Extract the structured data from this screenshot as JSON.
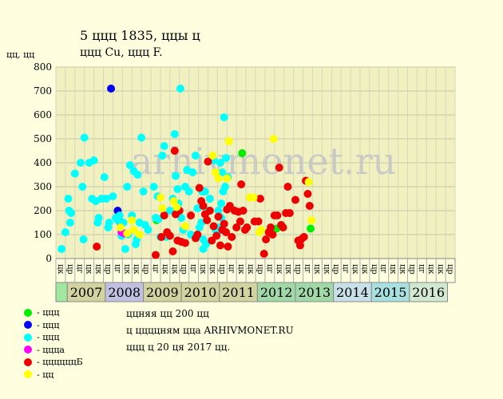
{
  "title": "5 ццц 1835, ццы ц",
  "subtitle": "ццц Cu, ццц F.",
  "ylabel": "цц, цц",
  "watermark": "arhivmonet.ru",
  "notes": [
    "ццняя цц 200 цц",
    "ц ццццням цца ARHIVMONET.RU",
    "ццц ц 20 ця 2017 цц."
  ],
  "legend": [
    {
      "label": "- ццц",
      "color": "#00ee00"
    },
    {
      "label": "- ццц",
      "color": "#0000ee"
    },
    {
      "label": "- ццц",
      "color": "#00ffff"
    },
    {
      "label": "- цццa",
      "color": "#ff00ff"
    },
    {
      "label": "- ццццццБ",
      "color": "#ee0000"
    },
    {
      "label": "- цц",
      "color": "#ffff00"
    }
  ],
  "chart_data": {
    "type": "scatter",
    "ylim": [
      0,
      800
    ],
    "yticks": [
      0,
      100,
      200,
      300,
      400,
      500,
      600,
      700,
      800
    ],
    "grid": true,
    "years": [
      "2007",
      "2008",
      "2009",
      "2010",
      "2011",
      "2012",
      "2013",
      "2014",
      "2015",
      "2016"
    ],
    "year_colors": [
      "#d3d3a0",
      "#c0c0e0",
      "#d3d3a0",
      "#d3d3a0",
      "#d3d3a0",
      "#a0d8a8",
      "#a0d8a8",
      "#c8e0e8",
      "#a8e0e0",
      "#d3e8d0"
    ],
    "quarter_labels": [
      "цк",
      "цр",
      "цг",
      "цк",
      "цк",
      "цр",
      "цг",
      "цк",
      "цк",
      "цр",
      "цг",
      "цк",
      "цк",
      "цр",
      "цг",
      "цк",
      "цк",
      "цр",
      "цг",
      "цк",
      "цк",
      "цр",
      "цг",
      "цк",
      "цк",
      "цр",
      "цг",
      "цк",
      "цк",
      "цр",
      "цг",
      "цк",
      "цк",
      "цр",
      "цг",
      "цк",
      "цк",
      "цр",
      "цг",
      "цк",
      "цк",
      "цр"
    ],
    "series": [
      {
        "color": "#00ee00",
        "points": [
          [
            10.1,
            160
          ],
          [
            19.1,
            440
          ],
          [
            22.7,
            125
          ],
          [
            26.3,
            125
          ]
        ]
      },
      {
        "color": "#0000ee",
        "points": [
          [
            5.3,
            710
          ],
          [
            6.0,
            200
          ],
          [
            6.2,
            155
          ]
        ]
      },
      {
        "color": "#00ffff",
        "points": [
          [
            0.1,
            40
          ],
          [
            0.5,
            110
          ],
          [
            0.8,
            250
          ],
          [
            0.9,
            200
          ],
          [
            1.0,
            150
          ],
          [
            1.1,
            190
          ],
          [
            1.5,
            355
          ],
          [
            2.1,
            400
          ],
          [
            2.3,
            300
          ],
          [
            2.5,
            505
          ],
          [
            2.4,
            80
          ],
          [
            3.0,
            400
          ],
          [
            3.3,
            250
          ],
          [
            3.5,
            410
          ],
          [
            3.7,
            240
          ],
          [
            3.9,
            150
          ],
          [
            4.0,
            170
          ],
          [
            4.3,
            250
          ],
          [
            4.6,
            340
          ],
          [
            4.8,
            250
          ],
          [
            5.0,
            130
          ],
          [
            5.1,
            150
          ],
          [
            5.5,
            260
          ],
          [
            5.8,
            170
          ],
          [
            6.0,
            160
          ],
          [
            6.2,
            180
          ],
          [
            6.4,
            95
          ],
          [
            6.6,
            150
          ],
          [
            6.8,
            40
          ],
          [
            7.0,
            300
          ],
          [
            7.1,
            100
          ],
          [
            7.3,
            390
          ],
          [
            7.5,
            180
          ],
          [
            7.7,
            365
          ],
          [
            7.9,
            60
          ],
          [
            8.0,
            80
          ],
          [
            8.1,
            350
          ],
          [
            8.3,
            150
          ],
          [
            8.5,
            505
          ],
          [
            8.7,
            280
          ],
          [
            8.9,
            140
          ],
          [
            9.2,
            120
          ],
          [
            9.8,
            300
          ],
          [
            10.0,
            170
          ],
          [
            10.2,
            260
          ],
          [
            10.3,
            165
          ],
          [
            10.5,
            90
          ],
          [
            10.7,
            430
          ],
          [
            10.9,
            470
          ],
          [
            11.1,
            90
          ],
          [
            11.5,
            200
          ],
          [
            11.8,
            250
          ],
          [
            12.0,
            520
          ],
          [
            12.1,
            345
          ],
          [
            12.3,
            290
          ],
          [
            12.4,
            230
          ],
          [
            12.6,
            710
          ],
          [
            12.7,
            170
          ],
          [
            12.9,
            120
          ],
          [
            13.1,
            300
          ],
          [
            13.3,
            370
          ],
          [
            13.5,
            280
          ],
          [
            13.7,
            100
          ],
          [
            13.9,
            360
          ],
          [
            14.2,
            430
          ],
          [
            14.4,
            210
          ],
          [
            14.6,
            130
          ],
          [
            14.8,
            150
          ],
          [
            14.9,
            280
          ],
          [
            15.0,
            80
          ],
          [
            15.0,
            40
          ],
          [
            15.2,
            280
          ],
          [
            15.3,
            60
          ],
          [
            15.5,
            200
          ],
          [
            15.7,
            250
          ],
          [
            16.1,
            410
          ],
          [
            16.3,
            120
          ],
          [
            16.6,
            200
          ],
          [
            16.8,
            400
          ],
          [
            16.9,
            170
          ],
          [
            17.0,
            360
          ],
          [
            17.1,
            280
          ],
          [
            17.2,
            590
          ],
          [
            17.3,
            300
          ],
          [
            17.4,
            420
          ],
          [
            17.6,
            340
          ],
          [
            16.9,
            230
          ],
          [
            16.7,
            130
          ],
          [
            16.5,
            110
          ]
        ]
      },
      {
        "color": "#ff00ff",
        "points": [
          [
            6.4,
            110
          ],
          [
            6.7,
            105
          ]
        ]
      },
      {
        "color": "#ee0000",
        "points": [
          [
            3.8,
            50
          ],
          [
            10.0,
            15
          ],
          [
            10.6,
            90
          ],
          [
            10.9,
            180
          ],
          [
            11.2,
            110
          ],
          [
            11.5,
            95
          ],
          [
            11.8,
            30
          ],
          [
            12.0,
            450
          ],
          [
            12.1,
            185
          ],
          [
            12.3,
            75
          ],
          [
            12.5,
            200
          ],
          [
            12.7,
            70
          ],
          [
            13.1,
            65
          ],
          [
            13.7,
            180
          ],
          [
            14.2,
            85
          ],
          [
            14.4,
            100
          ],
          [
            14.6,
            295
          ],
          [
            14.8,
            240
          ],
          [
            15.0,
            220
          ],
          [
            15.2,
            185
          ],
          [
            15.4,
            160
          ],
          [
            15.5,
            405
          ],
          [
            15.7,
            200
          ],
          [
            15.9,
            75
          ],
          [
            16.1,
            135
          ],
          [
            16.4,
            95
          ],
          [
            16.6,
            175
          ],
          [
            16.8,
            55
          ],
          [
            17.0,
            120
          ],
          [
            17.2,
            145
          ],
          [
            17.4,
            110
          ],
          [
            17.5,
            205
          ],
          [
            17.6,
            50
          ],
          [
            17.8,
            220
          ],
          [
            18.0,
            90
          ],
          [
            18.3,
            200
          ],
          [
            18.5,
            130
          ],
          [
            18.7,
            195
          ],
          [
            18.9,
            155
          ],
          [
            19.0,
            310
          ],
          [
            19.2,
            200
          ],
          [
            19.4,
            120
          ],
          [
            19.6,
            130
          ],
          [
            20.4,
            155
          ],
          [
            20.8,
            155
          ],
          [
            21.0,
            250
          ],
          [
            21.4,
            20
          ],
          [
            21.6,
            80
          ],
          [
            21.9,
            110
          ],
          [
            22.1,
            130
          ],
          [
            22.3,
            100
          ],
          [
            22.5,
            180
          ],
          [
            22.8,
            180
          ],
          [
            23.0,
            380
          ],
          [
            23.2,
            140
          ],
          [
            23.4,
            130
          ],
          [
            23.7,
            190
          ],
          [
            23.9,
            300
          ],
          [
            24.1,
            190
          ],
          [
            24.7,
            245
          ],
          [
            25.0,
            75
          ],
          [
            25.2,
            55
          ],
          [
            25.3,
            80
          ],
          [
            25.6,
            90
          ],
          [
            25.8,
            325
          ],
          [
            26.0,
            270
          ],
          [
            26.2,
            220
          ]
        ]
      },
      {
        "color": "#ffff00",
        "points": [
          [
            6.3,
            130
          ],
          [
            7.0,
            105
          ],
          [
            7.5,
            160
          ],
          [
            7.7,
            120
          ],
          [
            8.3,
            100
          ],
          [
            10.5,
            255
          ],
          [
            10.7,
            210
          ],
          [
            11.9,
            240
          ],
          [
            12.2,
            215
          ],
          [
            13.1,
            135
          ],
          [
            16.0,
            430
          ],
          [
            16.3,
            360
          ],
          [
            16.6,
            335
          ],
          [
            17.5,
            335
          ],
          [
            17.7,
            490
          ],
          [
            19.9,
            255
          ],
          [
            20.3,
            255
          ],
          [
            20.9,
            110
          ],
          [
            21.1,
            120
          ],
          [
            22.4,
            500
          ],
          [
            26.1,
            320
          ],
          [
            26.4,
            160
          ]
        ]
      }
    ]
  }
}
